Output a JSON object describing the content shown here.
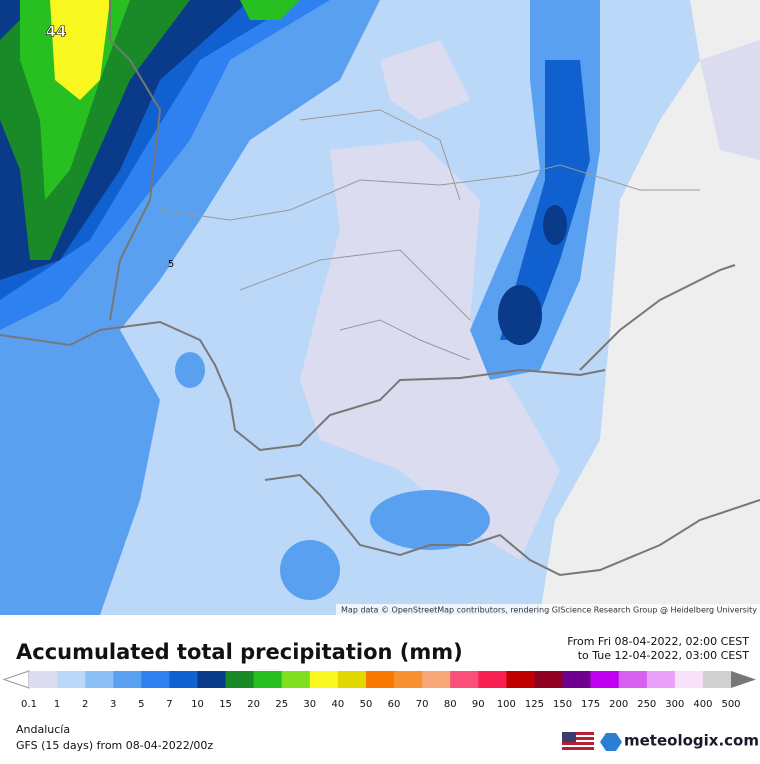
{
  "map": {
    "labels": [
      "44",
      "5"
    ],
    "attribution": "Map data © OpenStreetMap contributors, rendering GIScience Research Group @ Heidelberg University"
  },
  "header": {
    "title": "Accumulated total precipitation (mm)",
    "from": "From Fri 08-04-2022, 02:00 CEST",
    "to": "to Tue 12-04-2022, 03:00 CEST"
  },
  "legend": {
    "labels": [
      0.1,
      1,
      2,
      3,
      5,
      7,
      10,
      15,
      20,
      25,
      30,
      40,
      50,
      60,
      70,
      80,
      90,
      100,
      125,
      150,
      175,
      200,
      250,
      300,
      400,
      500
    ],
    "colors": [
      "#dcdcf0",
      "#bcd8f8",
      "#8ec0f8",
      "#5aa0f0",
      "#2f80f0",
      "#1060d0",
      "#0a3a8a",
      "#1a8a28",
      "#28c020",
      "#80e020",
      "#f8f820",
      "#e0d800",
      "#f87800",
      "#f89030",
      "#f8a878",
      "#f85078",
      "#f82050",
      "#c00000",
      "#900020",
      "#700090",
      "#c000f0",
      "#d860f0",
      "#e8a0f8",
      "#f8e0f8",
      "#d0d0d0"
    ]
  },
  "footer": {
    "region": "Andalucía",
    "model": "GFS (15 days) from 08-04-2022/00z",
    "brand": "meteologix.com"
  }
}
